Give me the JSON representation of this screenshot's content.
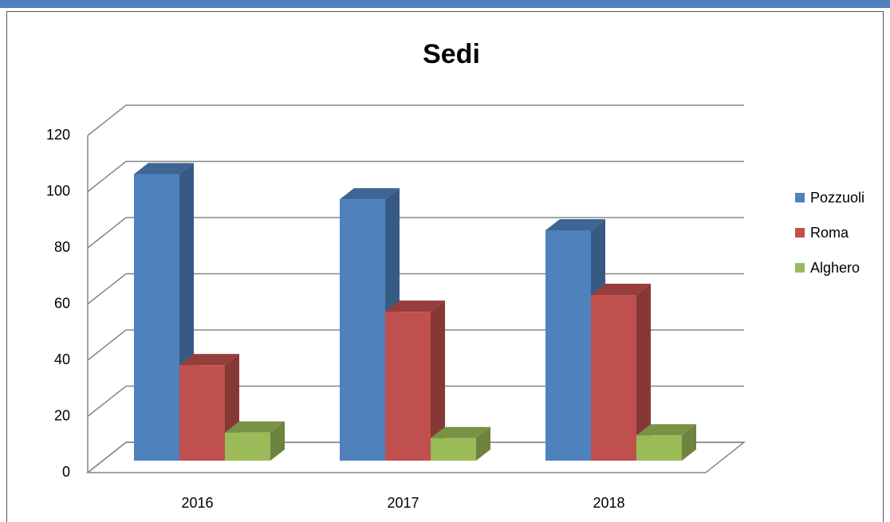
{
  "chart_data": {
    "type": "bar3d",
    "title": "Sedi",
    "categories": [
      "2016",
      "2017",
      "2018"
    ],
    "series": [
      {
        "name": "Pozzuoli",
        "color": "#4f81bd",
        "values": [
          102,
          93,
          82
        ]
      },
      {
        "name": "Roma",
        "color": "#c0504d",
        "values": [
          34,
          53,
          59
        ]
      },
      {
        "name": "Alghero",
        "color": "#9bbb59",
        "values": [
          10,
          8,
          9
        ]
      }
    ],
    "ylim": [
      0,
      120
    ],
    "yticks": [
      0,
      20,
      40,
      60,
      80,
      100,
      120
    ],
    "grid": true,
    "legend": "right"
  }
}
